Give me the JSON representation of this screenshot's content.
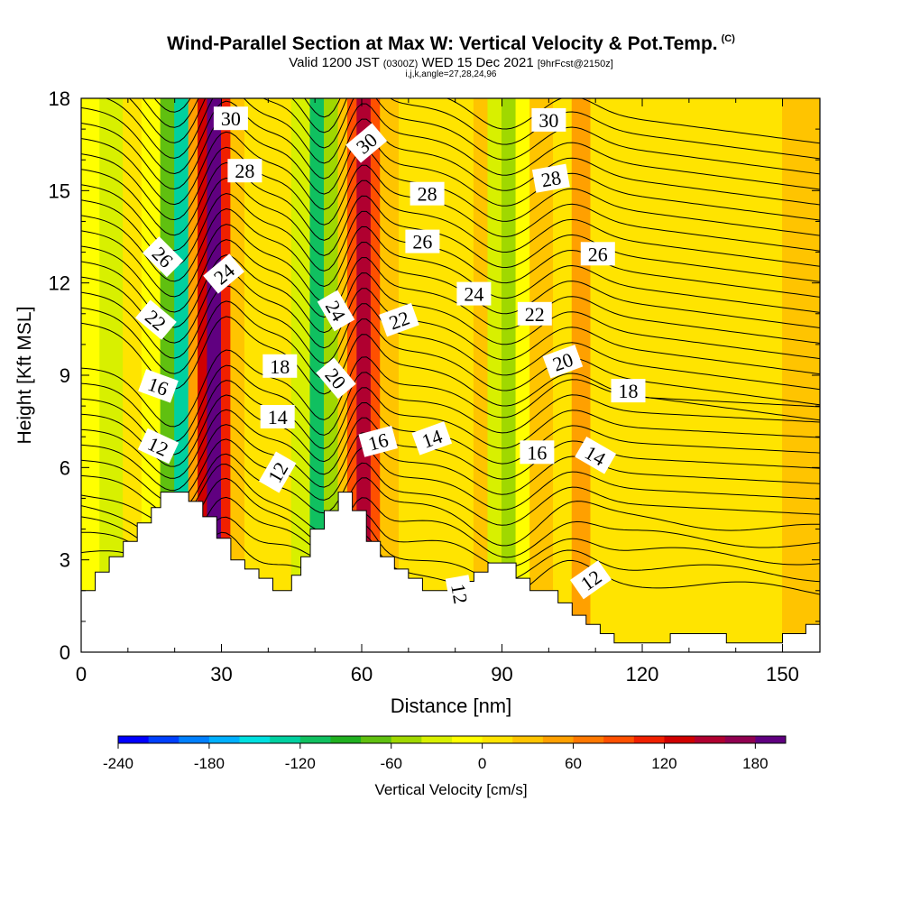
{
  "header": {
    "title": "Wind-Parallel Section at Max W: Vertical Velocity & Pot.Temp.",
    "copyright": "(C)",
    "valid_prefix": "Valid 1200 JST",
    "valid_utc": "(0300Z)",
    "valid_date": "WED 15 Dec 2021",
    "forecast": "[9hrFcst@2150z]",
    "indices": "i,j,k,angle=27,28,24,96"
  },
  "chart_data": {
    "type": "heatmap",
    "xlabel": "Distance [nm]",
    "ylabel": "Height [Kft MSL]",
    "xlim": [
      0,
      158
    ],
    "ylim": [
      0,
      18
    ],
    "xticks": [
      0,
      30,
      60,
      90,
      120,
      150
    ],
    "yticks": [
      0,
      3,
      6,
      9,
      12,
      15,
      18
    ],
    "colorbar": {
      "label": "Vertical Velocity [cm/s]",
      "ticks": [
        -240,
        -180,
        -120,
        -60,
        0,
        60,
        120,
        180
      ],
      "range": [
        -240,
        200
      ],
      "colors": [
        "#0000ff",
        "#0040ff",
        "#0080ff",
        "#00b0ff",
        "#00e0e0",
        "#00d0a0",
        "#10c060",
        "#20b020",
        "#60c010",
        "#a0d800",
        "#d8f000",
        "#ffff00",
        "#ffe400",
        "#ffc400",
        "#ffa000",
        "#ff7800",
        "#ff5000",
        "#f02000",
        "#d00000",
        "#b00030",
        "#900050",
        "#600080"
      ]
    },
    "velocity_cells": [
      {
        "x0": 0,
        "x1": 4,
        "w": -20
      },
      {
        "x0": 4,
        "x1": 9,
        "w": -40
      },
      {
        "x0": 9,
        "x1": 13,
        "w": 15
      },
      {
        "x0": 13,
        "x1": 17,
        "w": -20
      },
      {
        "x0": 17,
        "x1": 20,
        "w": -80
      },
      {
        "x0": 20,
        "x1": 23,
        "w": -130
      },
      {
        "x0": 23,
        "x1": 25,
        "w": 40
      },
      {
        "x0": 25,
        "x1": 27,
        "w": 130
      },
      {
        "x0": 27,
        "x1": 30,
        "w": 180
      },
      {
        "x0": 30,
        "x1": 32,
        "w": 100
      },
      {
        "x0": 32,
        "x1": 35,
        "w": 30
      },
      {
        "x0": 35,
        "x1": 45,
        "w": 10
      },
      {
        "x0": 45,
        "x1": 49,
        "w": -40
      },
      {
        "x0": 49,
        "x1": 52,
        "w": -110
      },
      {
        "x0": 52,
        "x1": 55,
        "w": -60
      },
      {
        "x0": 55,
        "x1": 57,
        "w": 20
      },
      {
        "x0": 57,
        "x1": 59,
        "w": 90
      },
      {
        "x0": 59,
        "x1": 62,
        "w": 150
      },
      {
        "x0": 62,
        "x1": 64,
        "w": 80
      },
      {
        "x0": 64,
        "x1": 68,
        "w": 20
      },
      {
        "x0": 68,
        "x1": 84,
        "w": 8
      },
      {
        "x0": 84,
        "x1": 87,
        "w": 30
      },
      {
        "x0": 87,
        "x1": 90,
        "w": -30
      },
      {
        "x0": 90,
        "x1": 93,
        "w": -60
      },
      {
        "x0": 93,
        "x1": 96,
        "w": -20
      },
      {
        "x0": 96,
        "x1": 101,
        "w": 35
      },
      {
        "x0": 101,
        "x1": 105,
        "w": 15
      },
      {
        "x0": 105,
        "x1": 109,
        "w": 45
      },
      {
        "x0": 109,
        "x1": 114,
        "w": 15
      },
      {
        "x0": 114,
        "x1": 150,
        "w": 8
      },
      {
        "x0": 150,
        "x1": 158,
        "w": 25
      }
    ],
    "contour_levels": [
      12,
      14,
      16,
      18,
      20,
      22,
      24,
      26,
      28,
      30
    ],
    "contour_labels": [
      {
        "text": "30",
        "x": 32,
        "y": 17.35,
        "rot": 0
      },
      {
        "text": "28",
        "x": 35,
        "y": 15.65,
        "rot": 0
      },
      {
        "text": "26",
        "x": 17.5,
        "y": 12.85,
        "rot": 45
      },
      {
        "text": "24",
        "x": 30.5,
        "y": 12.3,
        "rot": -40
      },
      {
        "text": "22",
        "x": 16,
        "y": 10.8,
        "rot": 40
      },
      {
        "text": "16",
        "x": 16.5,
        "y": 8.65,
        "rot": 20
      },
      {
        "text": "12",
        "x": 16.5,
        "y": 6.7,
        "rot": 25
      },
      {
        "text": "18",
        "x": 42.5,
        "y": 9.3,
        "rot": 0
      },
      {
        "text": "14",
        "x": 42,
        "y": 7.65,
        "rot": 0
      },
      {
        "text": "12",
        "x": 42,
        "y": 5.85,
        "rot": -60
      },
      {
        "text": "30",
        "x": 61,
        "y": 16.55,
        "rot": -40
      },
      {
        "text": "24",
        "x": 54.5,
        "y": 11.1,
        "rot": 60
      },
      {
        "text": "20",
        "x": 54.5,
        "y": 8.9,
        "rot": 50
      },
      {
        "text": "22",
        "x": 68,
        "y": 10.8,
        "rot": -20
      },
      {
        "text": "28",
        "x": 74,
        "y": 14.9,
        "rot": 0
      },
      {
        "text": "26",
        "x": 73,
        "y": 13.35,
        "rot": 0
      },
      {
        "text": "24",
        "x": 84,
        "y": 11.65,
        "rot": 0
      },
      {
        "text": "16",
        "x": 63.5,
        "y": 6.85,
        "rot": -15
      },
      {
        "text": "14",
        "x": 75,
        "y": 6.95,
        "rot": -20
      },
      {
        "text": "12",
        "x": 81,
        "y": 1.9,
        "rot": 80
      },
      {
        "text": "30",
        "x": 100,
        "y": 17.3,
        "rot": 0
      },
      {
        "text": "28",
        "x": 100.5,
        "y": 15.4,
        "rot": -10
      },
      {
        "text": "26",
        "x": 110.5,
        "y": 12.95,
        "rot": 0
      },
      {
        "text": "22",
        "x": 97,
        "y": 11,
        "rot": 0
      },
      {
        "text": "20",
        "x": 103,
        "y": 9.45,
        "rot": -20
      },
      {
        "text": "18",
        "x": 117,
        "y": 8.5,
        "rot": 0
      },
      {
        "text": "16",
        "x": 97.5,
        "y": 6.5,
        "rot": 0
      },
      {
        "text": "14",
        "x": 110,
        "y": 6.4,
        "rot": 30
      },
      {
        "text": "12",
        "x": 109,
        "y": 2.35,
        "rot": -35
      }
    ],
    "terrain": [
      [
        0,
        2
      ],
      [
        3,
        2
      ],
      [
        3,
        2.6
      ],
      [
        6,
        2.6
      ],
      [
        6,
        3.1
      ],
      [
        9,
        3.1
      ],
      [
        9,
        3.6
      ],
      [
        12,
        3.6
      ],
      [
        12,
        4.2
      ],
      [
        15,
        4.2
      ],
      [
        15,
        4.7
      ],
      [
        17,
        4.7
      ],
      [
        17,
        5.2
      ],
      [
        23,
        5.2
      ],
      [
        23,
        4.9
      ],
      [
        26,
        4.9
      ],
      [
        26,
        4.4
      ],
      [
        29,
        4.4
      ],
      [
        29,
        3.7
      ],
      [
        32,
        3.7
      ],
      [
        32,
        3
      ],
      [
        35,
        3
      ],
      [
        35,
        2.7
      ],
      [
        38,
        2.7
      ],
      [
        38,
        2.4
      ],
      [
        41,
        2.4
      ],
      [
        41,
        2
      ],
      [
        45,
        2
      ],
      [
        45,
        2.5
      ],
      [
        47,
        2.5
      ],
      [
        47,
        3.1
      ],
      [
        49,
        3.1
      ],
      [
        49,
        4
      ],
      [
        52,
        4
      ],
      [
        52,
        4.6
      ],
      [
        55,
        4.6
      ],
      [
        55,
        5.2
      ],
      [
        58,
        5.2
      ],
      [
        58,
        4.6
      ],
      [
        61,
        4.6
      ],
      [
        61,
        3.6
      ],
      [
        64,
        3.6
      ],
      [
        64,
        3.1
      ],
      [
        67,
        3.1
      ],
      [
        67,
        2.7
      ],
      [
        70,
        2.7
      ],
      [
        70,
        2.4
      ],
      [
        73,
        2.4
      ],
      [
        73,
        2
      ],
      [
        80,
        2
      ],
      [
        80,
        2.3
      ],
      [
        84,
        2.3
      ],
      [
        84,
        2.6
      ],
      [
        87,
        2.6
      ],
      [
        87,
        2.9
      ],
      [
        93,
        2.9
      ],
      [
        93,
        2.4
      ],
      [
        96,
        2.4
      ],
      [
        96,
        2
      ],
      [
        102,
        2
      ],
      [
        102,
        1.6
      ],
      [
        105,
        1.6
      ],
      [
        105,
        1.2
      ],
      [
        108,
        1.2
      ],
      [
        108,
        0.9
      ],
      [
        111,
        0.9
      ],
      [
        111,
        0.6
      ],
      [
        114,
        0.6
      ],
      [
        114,
        0.3
      ],
      [
        126,
        0.3
      ],
      [
        126,
        0.6
      ],
      [
        138,
        0.6
      ],
      [
        138,
        0.3
      ],
      [
        150,
        0.3
      ],
      [
        150,
        0.6
      ],
      [
        155,
        0.6
      ],
      [
        155,
        0.9
      ],
      [
        158,
        0.9
      ]
    ]
  }
}
